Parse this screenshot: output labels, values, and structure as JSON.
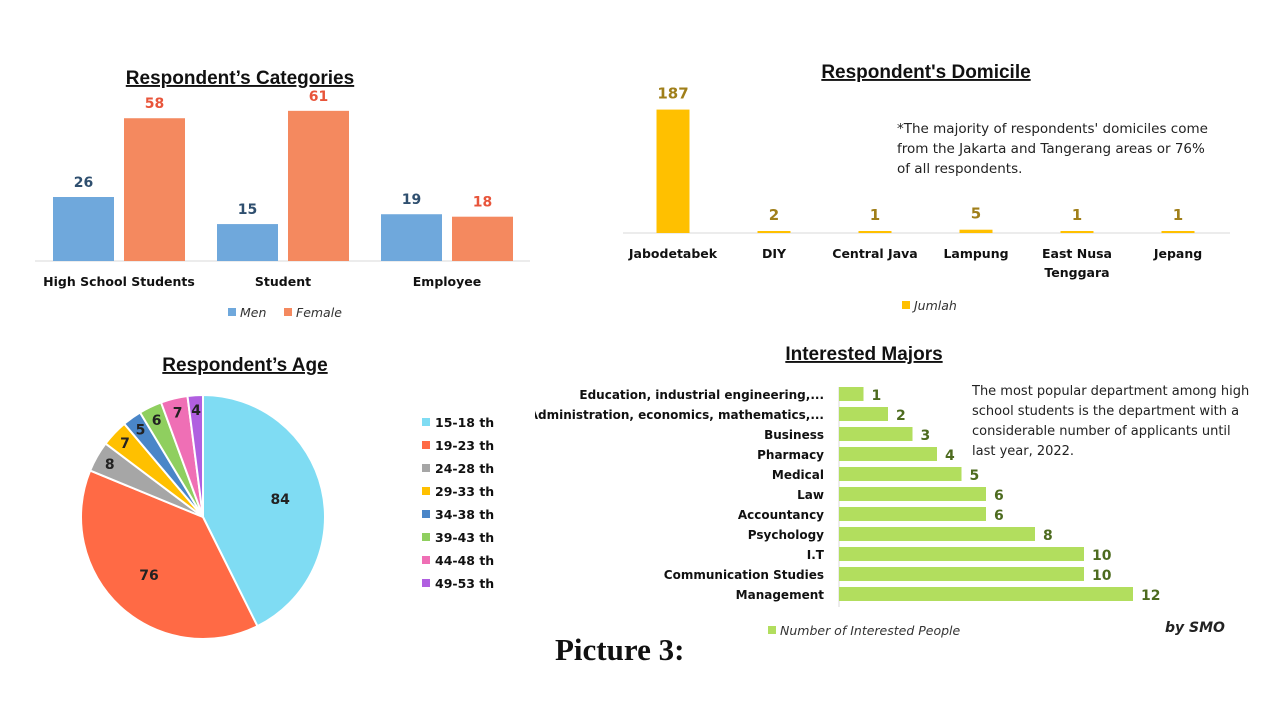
{
  "caption": "Picture 3:",
  "credit": "by SMO",
  "chart_data": [
    {
      "id": "categories",
      "type": "bar",
      "title": "Respondent’s Categories",
      "categories": [
        "High School Students",
        "Student",
        "Employee"
      ],
      "series": [
        {
          "name": "Men",
          "values": [
            26,
            15,
            19
          ],
          "color": "#6fa8dc"
        },
        {
          "name": "Female",
          "values": [
            58,
            61,
            18
          ],
          "color": "#f4895f"
        }
      ],
      "label_colors": [
        "#2f4f6f",
        "#e8553b"
      ],
      "ylim": [
        0,
        65
      ],
      "legend": "bottom"
    },
    {
      "id": "domicile",
      "type": "bar",
      "title": "Respondent's Domicile",
      "categories": [
        "Jabodetabek",
        "DIY",
        "Central Java",
        "Lampung",
        "East Nusa Tenggara",
        "Jepang"
      ],
      "series": [
        {
          "name": "Jumlah",
          "values": [
            187,
            2,
            1,
            5,
            1,
            1
          ],
          "color": "#ffc000"
        }
      ],
      "label_color": "#a07f1a",
      "ylim": [
        0,
        200
      ],
      "legend": "bottom",
      "annotation": "*The majority of respondents' domiciles come from the Jakarta and Tangerang areas or 76% of all respondents."
    },
    {
      "id": "age",
      "type": "pie",
      "title": "Respondent’s Age",
      "labels": [
        "15-18 th",
        "19-23 th",
        "24-28 th",
        "29-33 th",
        "34-38 th",
        "39-43 th",
        "44-48 th",
        "49-53 th"
      ],
      "values": [
        84,
        76,
        8,
        7,
        5,
        6,
        7,
        4
      ],
      "colors": [
        "#7fdcf3",
        "#ff6a45",
        "#a6a6a6",
        "#ffc000",
        "#4a86c8",
        "#8fcf5f",
        "#ef6fb5",
        "#b05fe0"
      ],
      "legend": "right"
    },
    {
      "id": "majors",
      "type": "bar",
      "orientation": "horizontal",
      "title": "Interested Majors",
      "categories": [
        "Education, industrial engineering,...",
        "Administration, economics, mathematics,...",
        "Business",
        "Pharmacy",
        "Medical",
        "Law",
        "Accountancy",
        "Psychology",
        "I.T",
        "Communication Studies",
        "Management"
      ],
      "series": [
        {
          "name": "Number of Interested People",
          "values": [
            1,
            2,
            3,
            4,
            5,
            6,
            6,
            8,
            10,
            10,
            12
          ],
          "color": "#b2de5e"
        }
      ],
      "label_color": "#4d6b1f",
      "xlim": [
        0,
        12
      ],
      "legend": "bottom",
      "annotation": "The most popular department among high school students is the department with a considerable number of applicants until last year, 2022."
    }
  ]
}
